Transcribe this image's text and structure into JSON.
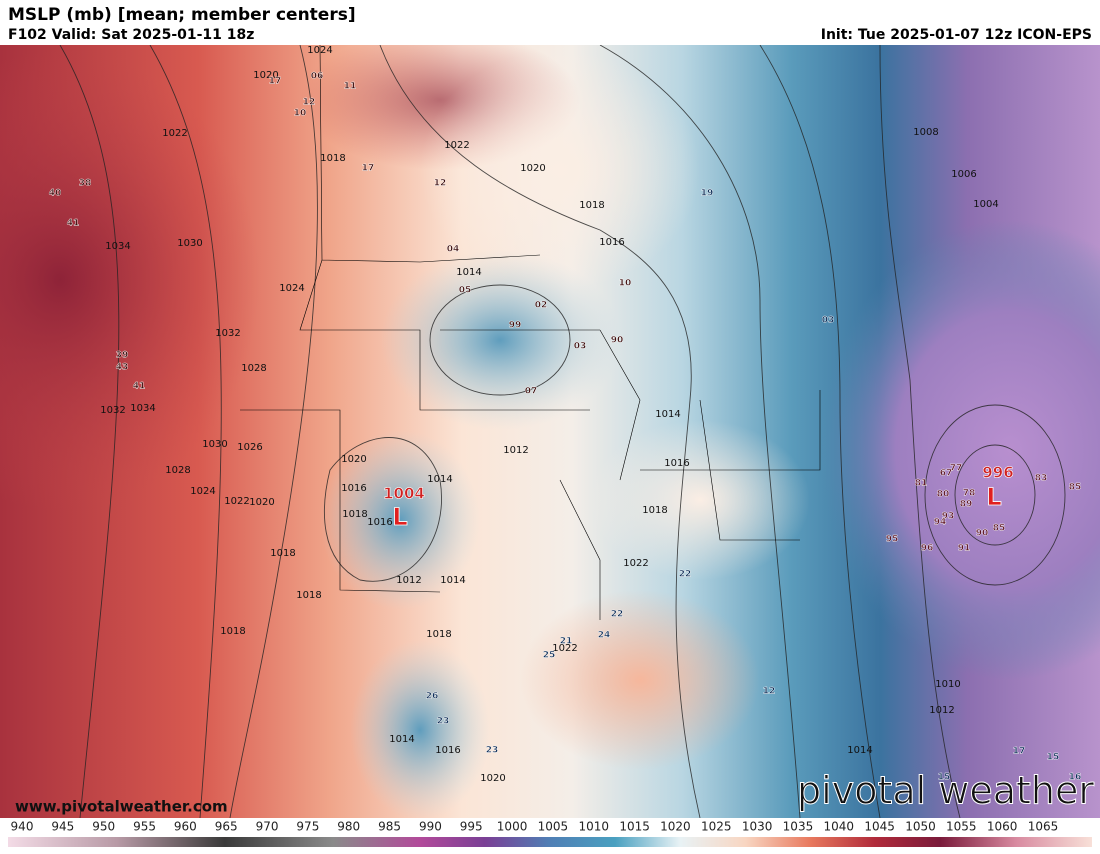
{
  "header": {
    "title": "MSLP (mb) [mean; member centers]",
    "valid": "F102 Valid: Sat 2025-01-11 18z",
    "init": "Init: Tue 2025-01-07 12z ICON-EPS"
  },
  "footer": {
    "website": "www.pivotalweather.com",
    "logo": "pivotal weather"
  },
  "map": {
    "centers": [
      {
        "pressure": "1004",
        "symbol": "L"
      },
      {
        "pressure": "996",
        "symbol": "L"
      }
    ],
    "labels": [
      "1024",
      "1020",
      "1022",
      "1018",
      "1022",
      "1020",
      "1018",
      "1016",
      "1014",
      "1034",
      "1030",
      "1024",
      "1032",
      "1028",
      "1032",
      "1034",
      "1030",
      "1026",
      "1028",
      "1024",
      "1022",
      "1020",
      "1020",
      "1016",
      "1018",
      "1016",
      "1018",
      "1018",
      "1018",
      "1012",
      "1014",
      "1014",
      "1012",
      "1014",
      "1016",
      "1018",
      "1018",
      "1022",
      "1022",
      "1016",
      "1014",
      "1020",
      "1010",
      "1012",
      "1014",
      "1008",
      "1006",
      "1004",
      "40",
      "38",
      "41",
      "39",
      "43",
      "41",
      "17",
      "06",
      "12",
      "10",
      "11",
      "17",
      "12",
      "19",
      "04",
      "03",
      "03",
      "90",
      "83",
      "85",
      "81",
      "77",
      "67",
      "80",
      "78",
      "89",
      "93",
      "91",
      "90",
      "85",
      "95",
      "96",
      "94",
      "12",
      "22",
      "22",
      "23",
      "24",
      "21",
      "25",
      "26",
      "23",
      "17",
      "15",
      "16",
      "15",
      "05",
      "02",
      "99",
      "07",
      "10"
    ]
  },
  "colorbar": {
    "ticks": [
      940,
      945,
      950,
      955,
      960,
      965,
      970,
      975,
      980,
      985,
      990,
      995,
      1000,
      1005,
      1010,
      1015,
      1020,
      1025,
      1030,
      1035,
      1040,
      1045,
      1050,
      1055,
      1060,
      1065
    ]
  }
}
